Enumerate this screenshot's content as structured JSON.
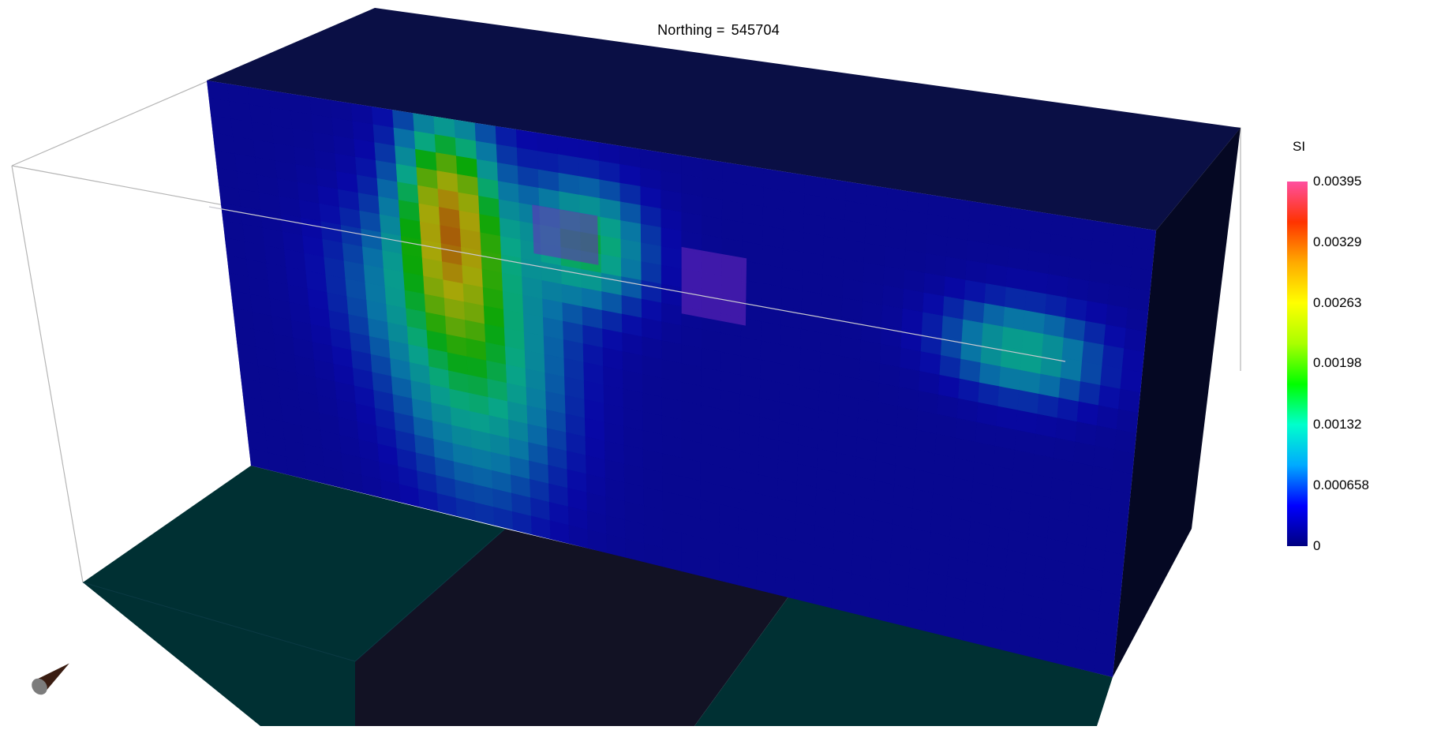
{
  "title": {
    "label": "Northing =",
    "value": "545704"
  },
  "colorbar": {
    "unit": "SI",
    "ticks": [
      {
        "label": "0.00395",
        "value": 0.00395
      },
      {
        "label": "0.00329",
        "value": 0.00329
      },
      {
        "label": "0.00263",
        "value": 0.00263
      },
      {
        "label": "0.00198",
        "value": 0.00198
      },
      {
        "label": "0.00132",
        "value": 0.00132
      },
      {
        "label": "0.000658",
        "value": 0.000658
      },
      {
        "label": "0",
        "value": 0
      }
    ],
    "min": 0,
    "max": 0.00395,
    "colormap": [
      "#000080",
      "#0000ff",
      "#00aaff",
      "#00ffcc",
      "#00ff00",
      "#aaff00",
      "#ffff00",
      "#ffaa00",
      "#ff3300",
      "#ff4fa0"
    ]
  },
  "colors": {
    "box_top": "#0a0f45",
    "box_side": "#050823",
    "box_front_base": "#01018a",
    "floor_teal": "#003033",
    "floor_dark": "#121224",
    "outline": "#b5b5b5"
  },
  "orientation_marker": {
    "icon": "orientation-cone-icon"
  }
}
